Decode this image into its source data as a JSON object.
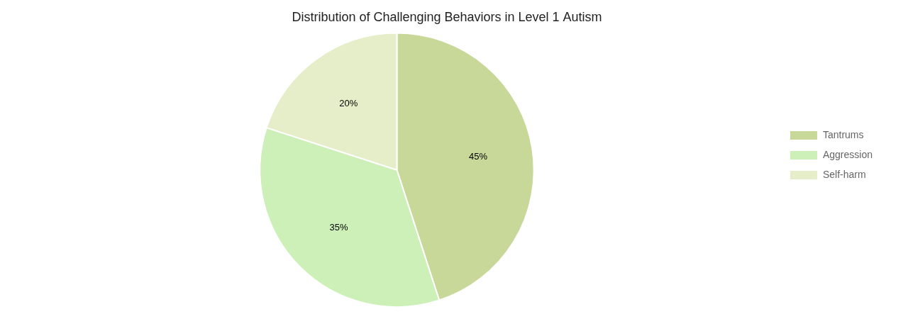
{
  "chart_data": {
    "type": "pie",
    "title": "Distribution of Challenging Behaviors in Level 1 Autism",
    "categories": [
      "Tantrums",
      "Aggression",
      "Self-harm"
    ],
    "values": [
      45,
      35,
      20
    ],
    "value_labels": [
      "45%",
      "35%",
      "20%"
    ],
    "colors": [
      "#c8d898",
      "#ccf0b8",
      "#e5eec8"
    ],
    "data_labels": true,
    "legend": "right"
  }
}
